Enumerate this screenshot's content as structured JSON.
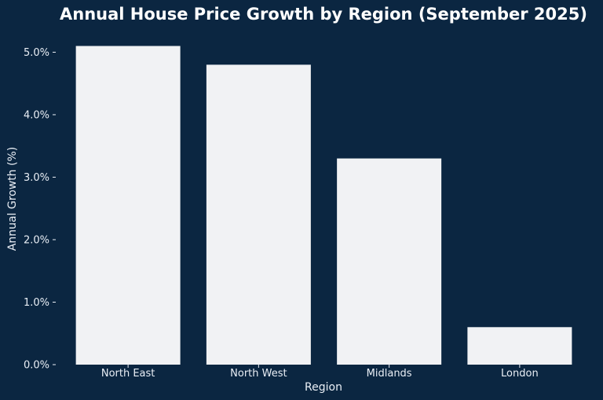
{
  "chart_data": {
    "type": "bar",
    "title": "Annual House Price Growth by Region (September 2025)",
    "xlabel": "Region",
    "ylabel": "Annual Growth (%)",
    "categories": [
      "North East",
      "North West",
      "Midlands",
      "London"
    ],
    "values": [
      5.1,
      4.8,
      3.3,
      0.6
    ],
    "ylim": [
      0,
      5.3
    ],
    "yticks": [
      0,
      1,
      2,
      3,
      4,
      5
    ],
    "ytick_labels": [
      "0.0%",
      "1.0%",
      "2.0%",
      "3.0%",
      "4.0%",
      "5.0%"
    ],
    "grid": false,
    "legend": "none",
    "colors": {
      "background": "#0b2641",
      "bar": "#f1f2f4",
      "text": "#e9eef5",
      "title": "#ffffff"
    }
  }
}
